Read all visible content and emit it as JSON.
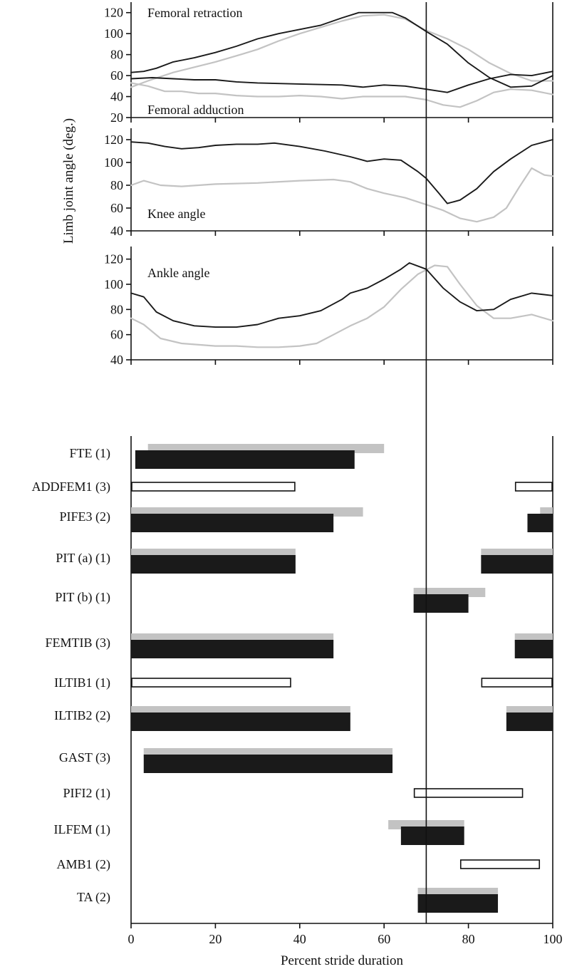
{
  "chart_data": {
    "type": "line",
    "y_axis_title": "Limb joint angle (deg.)",
    "x_axis_title": "Percent stride duration",
    "x_range": [
      0,
      100
    ],
    "x_ticks": [
      0,
      20,
      40,
      60,
      80,
      100
    ],
    "reference_line_x": 70,
    "colors": {
      "black": "#1a1a1a",
      "gray": "#c3c3c3"
    },
    "panels": [
      {
        "name": "femur",
        "ylim": [
          20,
          130
        ],
        "y_ticks": [
          20,
          40,
          60,
          80,
          100,
          120
        ],
        "labels": [
          "Femoral retraction",
          "Femoral adduction"
        ],
        "series": [
          {
            "color": "black",
            "points": [
              [
                0,
                63
              ],
              [
                3,
                64
              ],
              [
                6,
                67
              ],
              [
                10,
                73
              ],
              [
                15,
                77
              ],
              [
                20,
                82
              ],
              [
                25,
                88
              ],
              [
                30,
                95
              ],
              [
                35,
                100
              ],
              [
                40,
                104
              ],
              [
                45,
                108
              ],
              [
                50,
                115
              ],
              [
                54,
                120
              ],
              [
                58,
                120
              ],
              [
                62,
                120
              ],
              [
                65,
                115
              ],
              [
                70,
                102
              ],
              [
                75,
                90
              ],
              [
                80,
                72
              ],
              [
                85,
                58
              ],
              [
                90,
                49
              ],
              [
                95,
                50
              ],
              [
                100,
                60
              ]
            ]
          },
          {
            "color": "gray",
            "points": [
              [
                0,
                49
              ],
              [
                4,
                55
              ],
              [
                10,
                63
              ],
              [
                15,
                68
              ],
              [
                20,
                73
              ],
              [
                26,
                80
              ],
              [
                30,
                85
              ],
              [
                35,
                93
              ],
              [
                40,
                100
              ],
              [
                45,
                106
              ],
              [
                50,
                112
              ],
              [
                55,
                117
              ],
              [
                60,
                118
              ],
              [
                65,
                114
              ],
              [
                70,
                103
              ],
              [
                75,
                95
              ],
              [
                80,
                85
              ],
              [
                85,
                72
              ],
              [
                90,
                62
              ],
              [
                95,
                55
              ],
              [
                100,
                55
              ]
            ]
          },
          {
            "color": "black",
            "points": [
              [
                0,
                57
              ],
              [
                5,
                58
              ],
              [
                10,
                57
              ],
              [
                15,
                56
              ],
              [
                20,
                56
              ],
              [
                25,
                54
              ],
              [
                30,
                53
              ],
              [
                40,
                52
              ],
              [
                50,
                51
              ],
              [
                55,
                49
              ],
              [
                60,
                51
              ],
              [
                65,
                50
              ],
              [
                70,
                47
              ],
              [
                75,
                44
              ],
              [
                80,
                51
              ],
              [
                85,
                57
              ],
              [
                90,
                61
              ],
              [
                95,
                60
              ],
              [
                100,
                64
              ]
            ]
          },
          {
            "color": "gray",
            "points": [
              [
                0,
                53
              ],
              [
                4,
                50
              ],
              [
                8,
                45
              ],
              [
                12,
                45
              ],
              [
                16,
                43
              ],
              [
                20,
                43
              ],
              [
                25,
                41
              ],
              [
                30,
                40
              ],
              [
                35,
                40
              ],
              [
                40,
                41
              ],
              [
                45,
                40
              ],
              [
                50,
                38
              ],
              [
                55,
                40
              ],
              [
                60,
                40
              ],
              [
                65,
                40
              ],
              [
                70,
                37
              ],
              [
                74,
                32
              ],
              [
                78,
                30
              ],
              [
                82,
                36
              ],
              [
                86,
                44
              ],
              [
                90,
                47
              ],
              [
                95,
                46
              ],
              [
                100,
                42
              ]
            ]
          }
        ]
      },
      {
        "name": "knee",
        "ylim": [
          40,
          130
        ],
        "y_ticks": [
          40,
          60,
          80,
          100,
          120
        ],
        "labels": [
          "Knee angle"
        ],
        "series": [
          {
            "color": "black",
            "points": [
              [
                0,
                118
              ],
              [
                4,
                117
              ],
              [
                8,
                114
              ],
              [
                12,
                112
              ],
              [
                16,
                113
              ],
              [
                20,
                115
              ],
              [
                25,
                116
              ],
              [
                30,
                116
              ],
              [
                34,
                117
              ],
              [
                40,
                114
              ],
              [
                46,
                110
              ],
              [
                52,
                105
              ],
              [
                56,
                101
              ],
              [
                60,
                103
              ],
              [
                64,
                102
              ],
              [
                68,
                92
              ],
              [
                70,
                86
              ],
              [
                73,
                73
              ],
              [
                75,
                64
              ],
              [
                78,
                67
              ],
              [
                82,
                77
              ],
              [
                86,
                92
              ],
              [
                90,
                103
              ],
              [
                95,
                115
              ],
              [
                100,
                120
              ]
            ]
          },
          {
            "color": "gray",
            "points": [
              [
                0,
                80
              ],
              [
                3,
                84
              ],
              [
                7,
                80
              ],
              [
                12,
                79
              ],
              [
                20,
                81
              ],
              [
                30,
                82
              ],
              [
                40,
                84
              ],
              [
                48,
                85
              ],
              [
                52,
                83
              ],
              [
                56,
                77
              ],
              [
                60,
                73
              ],
              [
                65,
                69
              ],
              [
                70,
                63
              ],
              [
                74,
                58
              ],
              [
                78,
                51
              ],
              [
                82,
                48
              ],
              [
                86,
                52
              ],
              [
                89,
                60
              ],
              [
                92,
                78
              ],
              [
                95,
                95
              ],
              [
                98,
                89
              ],
              [
                100,
                88
              ]
            ]
          }
        ]
      },
      {
        "name": "ankle",
        "ylim": [
          40,
          130
        ],
        "y_ticks": [
          40,
          60,
          80,
          100,
          120
        ],
        "labels": [
          "Ankle angle"
        ],
        "series": [
          {
            "color": "black",
            "points": [
              [
                0,
                93
              ],
              [
                3,
                90
              ],
              [
                6,
                78
              ],
              [
                10,
                71
              ],
              [
                15,
                67
              ],
              [
                20,
                66
              ],
              [
                25,
                66
              ],
              [
                30,
                68
              ],
              [
                35,
                73
              ],
              [
                40,
                75
              ],
              [
                45,
                79
              ],
              [
                50,
                88
              ],
              [
                52,
                93
              ],
              [
                56,
                97
              ],
              [
                60,
                104
              ],
              [
                64,
                112
              ],
              [
                66,
                117
              ],
              [
                70,
                112
              ],
              [
                74,
                97
              ],
              [
                78,
                86
              ],
              [
                82,
                79
              ],
              [
                86,
                80
              ],
              [
                90,
                88
              ],
              [
                95,
                93
              ],
              [
                100,
                91
              ]
            ]
          },
          {
            "color": "gray",
            "points": [
              [
                0,
                73
              ],
              [
                3,
                68
              ],
              [
                7,
                57
              ],
              [
                12,
                53
              ],
              [
                20,
                51
              ],
              [
                25,
                51
              ],
              [
                30,
                50
              ],
              [
                35,
                50
              ],
              [
                40,
                51
              ],
              [
                44,
                53
              ],
              [
                48,
                60
              ],
              [
                52,
                67
              ],
              [
                56,
                73
              ],
              [
                60,
                82
              ],
              [
                64,
                96
              ],
              [
                68,
                108
              ],
              [
                72,
                115
              ],
              [
                75,
                114
              ],
              [
                78,
                100
              ],
              [
                82,
                83
              ],
              [
                86,
                73
              ],
              [
                90,
                73
              ],
              [
                95,
                76
              ],
              [
                100,
                71
              ]
            ]
          }
        ]
      }
    ],
    "emg": [
      {
        "label": "FTE (1)",
        "style": "paired",
        "gray": [
          [
            4,
            60
          ]
        ],
        "black": [
          [
            1,
            53
          ]
        ]
      },
      {
        "label": "ADDFEM1 (3)",
        "style": "open",
        "open": [
          [
            0,
            39
          ],
          [
            91,
            100
          ]
        ]
      },
      {
        "label": "PIFE3 (2)",
        "style": "paired",
        "gray": [
          [
            0,
            55
          ],
          [
            97,
            100
          ]
        ],
        "black": [
          [
            0,
            48
          ],
          [
            94,
            100
          ]
        ]
      },
      {
        "label": "PIT (a) (1)",
        "style": "paired",
        "gray": [
          [
            0,
            39
          ],
          [
            83,
            100
          ]
        ],
        "black": [
          [
            0,
            39
          ],
          [
            83,
            100
          ]
        ]
      },
      {
        "label": "PIT (b) (1)",
        "style": "paired",
        "gray": [
          [
            67,
            84
          ]
        ],
        "black": [
          [
            67,
            80
          ]
        ]
      },
      {
        "label": "FEMTIB (3)",
        "style": "paired",
        "gray": [
          [
            0,
            48
          ],
          [
            91,
            100
          ]
        ],
        "black": [
          [
            0,
            48
          ],
          [
            91,
            100
          ]
        ]
      },
      {
        "label": "ILTIB1 (1)",
        "style": "open",
        "open": [
          [
            0,
            38
          ],
          [
            83,
            100
          ]
        ]
      },
      {
        "label": "ILTIB2 (2)",
        "style": "paired",
        "gray": [
          [
            0,
            52
          ],
          [
            89,
            100
          ]
        ],
        "black": [
          [
            0,
            52
          ],
          [
            89,
            100
          ]
        ]
      },
      {
        "label": "GAST (3)",
        "style": "paired",
        "gray": [
          [
            3,
            62
          ]
        ],
        "black": [
          [
            3,
            62
          ]
        ]
      },
      {
        "label": "PIFI2 (1)",
        "style": "open",
        "open": [
          [
            67,
            93
          ]
        ]
      },
      {
        "label": "ILFEM (1)",
        "style": "paired",
        "gray": [
          [
            61,
            79
          ]
        ],
        "black": [
          [
            64,
            79
          ]
        ]
      },
      {
        "label": "AMB1 (2)",
        "style": "open",
        "open": [
          [
            78,
            97
          ]
        ]
      },
      {
        "label": "TA (2)",
        "style": "paired",
        "gray": [
          [
            68,
            87
          ]
        ],
        "black": [
          [
            68,
            87
          ]
        ]
      }
    ]
  }
}
